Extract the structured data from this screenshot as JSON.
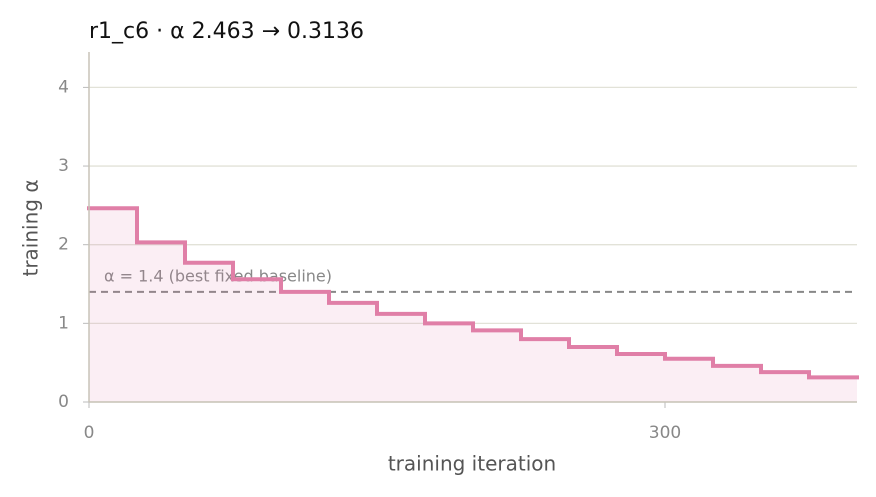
{
  "chart_data": {
    "type": "step",
    "title": "r1_c6   ·   α 2.463 → 0.3136",
    "x_label": "training iteration",
    "y_label": "training α",
    "x": [
      0,
      25,
      50,
      75,
      100,
      125,
      150,
      175,
      200,
      225,
      250,
      275,
      300,
      325,
      350,
      375
    ],
    "series": [
      {
        "name": "training α",
        "color": "#e07fa7",
        "values": [
          2.463,
          2.03,
          1.77,
          1.56,
          1.4,
          1.26,
          1.12,
          1.0,
          0.91,
          0.8,
          0.7,
          0.61,
          0.55,
          0.46,
          0.38,
          0.3136
        ]
      }
    ],
    "xlim": [
      0,
      400
    ],
    "xticks": [
      0,
      300
    ],
    "ylim": [
      0,
      4.45
    ],
    "yticks": [
      0,
      1,
      2,
      3,
      4
    ],
    "grid": true,
    "reference_line": {
      "value": 1.4,
      "label": "α = 1.4 (best fixed baseline)",
      "color": "#888888"
    }
  }
}
